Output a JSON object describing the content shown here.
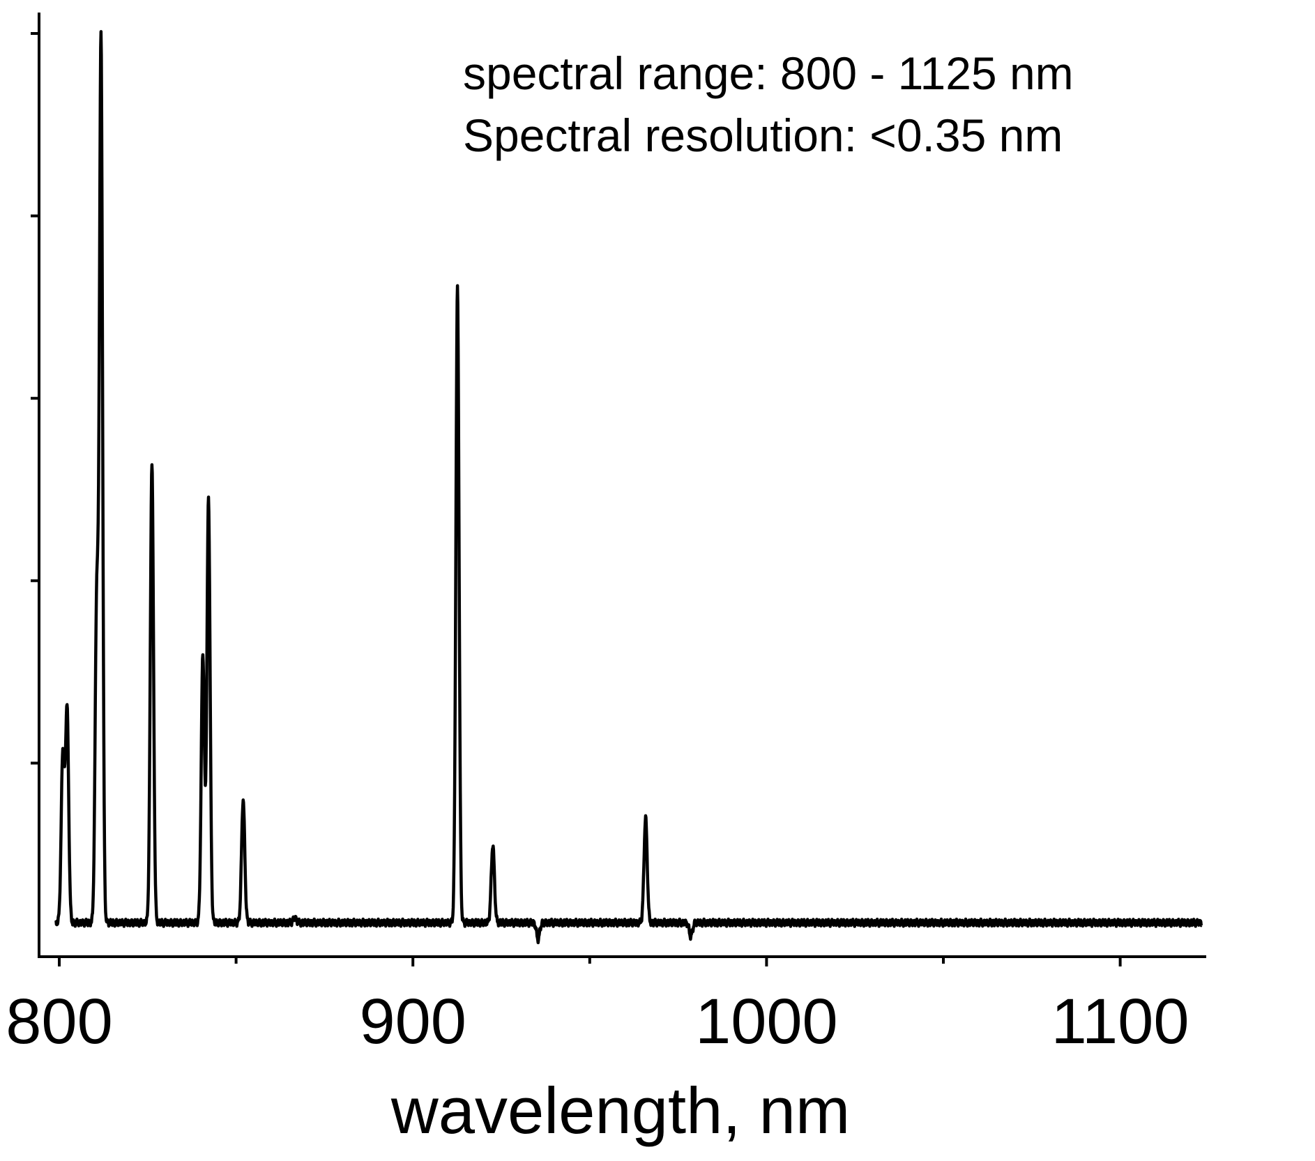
{
  "chart_data": {
    "type": "line",
    "title": "",
    "xlabel": "wavelength, nm",
    "ylabel": "",
    "xlim": [
      794,
      1125
    ],
    "ylim": [
      0,
      1.02
    ],
    "xticks_major": [
      800,
      900,
      1000,
      1100
    ],
    "xticks_minor": [
      850,
      950,
      1050
    ],
    "xtick_labels": [
      "800",
      "900",
      "1000",
      "1100"
    ],
    "yticks": [
      0.2,
      0.4,
      0.6,
      0.8,
      1.0
    ],
    "ytick_labels": [],
    "grid": false,
    "legend": "none",
    "annotations": [
      "spectral range: 800 - 1125 nm",
      "Spectral resolution: <0.35 nm"
    ],
    "baseline": 0.025,
    "series": [
      {
        "color": "#000000",
        "peaks": [
          {
            "x": 801.0,
            "y": 0.21
          },
          {
            "x": 802.2,
            "y": 0.26
          },
          {
            "x": 810.6,
            "y": 0.38
          },
          {
            "x": 811.8,
            "y": 0.99
          },
          {
            "x": 826.2,
            "y": 0.53
          },
          {
            "x": 840.6,
            "y": 0.32
          },
          {
            "x": 842.2,
            "y": 0.49
          },
          {
            "x": 852.0,
            "y": 0.16
          },
          {
            "x": 866.6,
            "y": 0.03
          },
          {
            "x": 912.6,
            "y": 0.72
          },
          {
            "x": 922.6,
            "y": 0.11
          },
          {
            "x": 935.4,
            "y": 0.007
          },
          {
            "x": 965.8,
            "y": 0.14
          },
          {
            "x": 978.6,
            "y": 0.01
          }
        ]
      }
    ]
  }
}
